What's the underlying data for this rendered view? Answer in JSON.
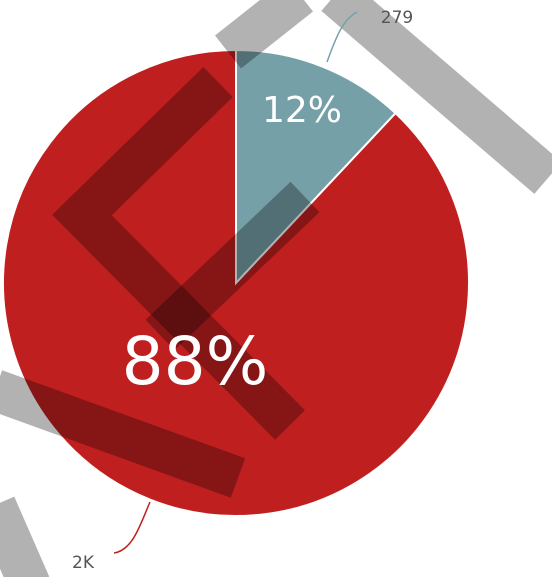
{
  "chart_data": {
    "type": "pie",
    "values": [
      279,
      2046
    ],
    "value_labels": [
      "279",
      "2K"
    ],
    "percent_labels": [
      "12%",
      "88%"
    ],
    "colors": [
      "#76a0a8",
      "#c01f1f"
    ]
  }
}
